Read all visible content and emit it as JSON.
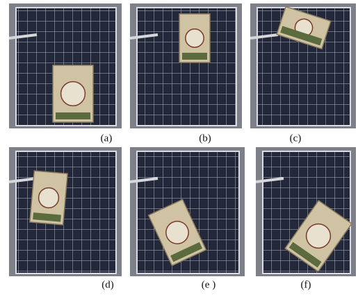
{
  "panels": [
    {
      "label": "(a)"
    },
    {
      "label": "(b)"
    },
    {
      "label": "(c)"
    },
    {
      "label": "(d)"
    },
    {
      "label": "(e )"
    },
    {
      "label": "(f)"
    }
  ]
}
